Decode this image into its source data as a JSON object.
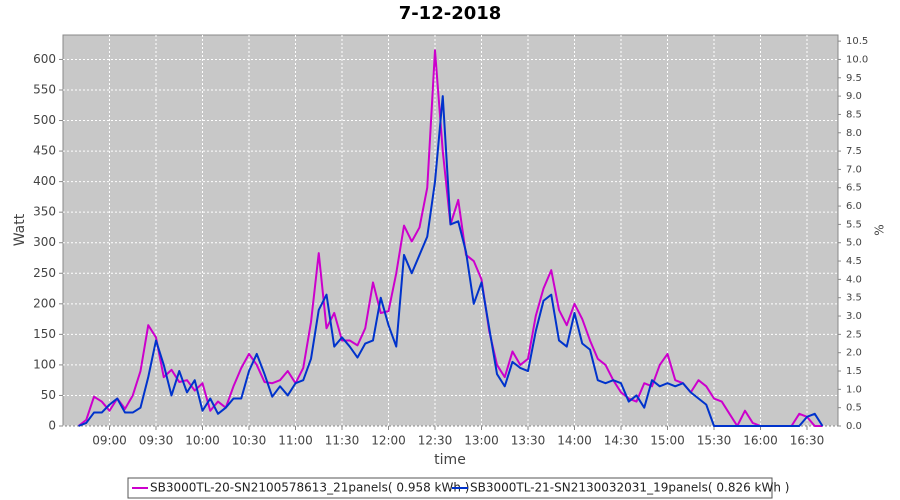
{
  "chart_data": {
    "type": "line",
    "title": "7-12-2018",
    "x_label": "time",
    "y_label": "Watt",
    "y2_label": "%",
    "x": [
      "08:40",
      "08:45",
      "08:50",
      "08:55",
      "09:00",
      "09:05",
      "09:10",
      "09:15",
      "09:20",
      "09:25",
      "09:30",
      "09:35",
      "09:40",
      "09:45",
      "09:50",
      "09:55",
      "10:00",
      "10:05",
      "10:10",
      "10:15",
      "10:20",
      "10:25",
      "10:30",
      "10:35",
      "10:40",
      "10:45",
      "10:50",
      "10:55",
      "11:00",
      "11:05",
      "11:10",
      "11:15",
      "11:20",
      "11:25",
      "11:30",
      "11:35",
      "11:40",
      "11:45",
      "11:50",
      "11:55",
      "12:00",
      "12:05",
      "12:10",
      "12:15",
      "12:20",
      "12:25",
      "12:30",
      "12:35",
      "12:40",
      "12:45",
      "12:50",
      "12:55",
      "13:00",
      "13:05",
      "13:10",
      "13:15",
      "13:20",
      "13:25",
      "13:30",
      "13:35",
      "13:40",
      "13:45",
      "13:50",
      "13:55",
      "14:00",
      "14:05",
      "14:10",
      "14:15",
      "14:20",
      "14:25",
      "14:30",
      "14:35",
      "14:40",
      "14:45",
      "14:50",
      "14:55",
      "15:00",
      "15:05",
      "15:10",
      "15:15",
      "15:20",
      "15:25",
      "15:30",
      "15:35",
      "15:40",
      "15:45",
      "15:50",
      "15:55",
      "16:00",
      "16:05",
      "16:10",
      "16:15",
      "16:20",
      "16:25",
      "16:30",
      "16:35",
      "16:40"
    ],
    "series": [
      {
        "name": "SB3000TL-20-SN2100578613_21panels( 0.958 kWh )",
        "color": "#cc00cc",
        "values": [
          0,
          10,
          48,
          40,
          25,
          45,
          28,
          50,
          90,
          165,
          145,
          80,
          92,
          72,
          75,
          58,
          70,
          25,
          40,
          30,
          65,
          95,
          118,
          100,
          72,
          70,
          75,
          90,
          70,
          95,
          170,
          283,
          160,
          185,
          140,
          140,
          132,
          160,
          235,
          185,
          188,
          250,
          328,
          302,
          325,
          390,
          615,
          450,
          330,
          370,
          280,
          270,
          240,
          155,
          100,
          80,
          122,
          100,
          110,
          180,
          225,
          255,
          190,
          165,
          200,
          175,
          140,
          110,
          100,
          75,
          55,
          45,
          40,
          70,
          65,
          100,
          118,
          75,
          70,
          55,
          75,
          65,
          45,
          40,
          20,
          0,
          25,
          5,
          0,
          0,
          0,
          0,
          0,
          20,
          15,
          0,
          0
        ]
      },
      {
        "name": "SB3000TL-21-SN2130032031_19panels( 0.826 kWh )",
        "color": "#0033cc",
        "values": [
          0,
          5,
          22,
          22,
          35,
          45,
          22,
          22,
          30,
          80,
          140,
          100,
          50,
          90,
          55,
          75,
          25,
          45,
          20,
          30,
          45,
          45,
          90,
          118,
          85,
          48,
          65,
          50,
          70,
          75,
          110,
          190,
          215,
          130,
          145,
          130,
          112,
          135,
          140,
          210,
          165,
          130,
          280,
          250,
          280,
          310,
          400,
          540,
          330,
          335,
          285,
          200,
          235,
          160,
          85,
          65,
          105,
          95,
          90,
          155,
          205,
          215,
          140,
          130,
          185,
          135,
          125,
          75,
          70,
          75,
          70,
          40,
          50,
          30,
          75,
          65,
          70,
          65,
          70,
          55,
          45,
          35,
          0,
          0,
          0,
          0,
          0,
          0,
          0,
          0,
          0,
          0,
          0,
          0,
          15,
          20,
          0
        ]
      }
    ],
    "xlim": [
      "08:30",
      "16:50"
    ],
    "xticks": [
      "09:00",
      "09:30",
      "10:00",
      "10:30",
      "11:00",
      "11:30",
      "12:00",
      "12:30",
      "13:00",
      "13:30",
      "14:00",
      "14:30",
      "15:00",
      "15:30",
      "16:00",
      "16:30"
    ],
    "ylim": [
      0,
      640
    ],
    "yticks": [
      0,
      50,
      100,
      150,
      200,
      250,
      300,
      350,
      400,
      450,
      500,
      550,
      600
    ],
    "y2lim": [
      0,
      10.667
    ],
    "y2ticks": [
      {
        "value": 0,
        "label": "0.0"
      },
      {
        "value": 0.5,
        "label": "0.5"
      },
      {
        "value": 1,
        "label": "1.0"
      },
      {
        "value": 1.5,
        "label": "1.5"
      },
      {
        "value": 2,
        "label": "2.0"
      },
      {
        "value": 2.5,
        "label": "2.5"
      },
      {
        "value": 3,
        "label": "3.0"
      },
      {
        "value": 3.5,
        "label": "3.5"
      },
      {
        "value": 4,
        "label": "4.0"
      },
      {
        "value": 4.5,
        "label": "4.5"
      },
      {
        "value": 5,
        "label": "5.0"
      },
      {
        "value": 5.5,
        "label": "5.5"
      },
      {
        "value": 6,
        "label": "6.0"
      },
      {
        "value": 6.5,
        "label": "6.5"
      },
      {
        "value": 7,
        "label": "7.0"
      },
      {
        "value": 7.5,
        "label": "7.5"
      },
      {
        "value": 8,
        "label": "8.0"
      },
      {
        "value": 8.5,
        "label": "8.5"
      },
      {
        "value": 9,
        "label": "9.0"
      },
      {
        "value": 9.5,
        "label": "9.5"
      },
      {
        "value": 10,
        "label": "10.0"
      },
      {
        "value": 10.5,
        "label": "10.5"
      }
    ],
    "grid": true,
    "legend": "bottom"
  }
}
